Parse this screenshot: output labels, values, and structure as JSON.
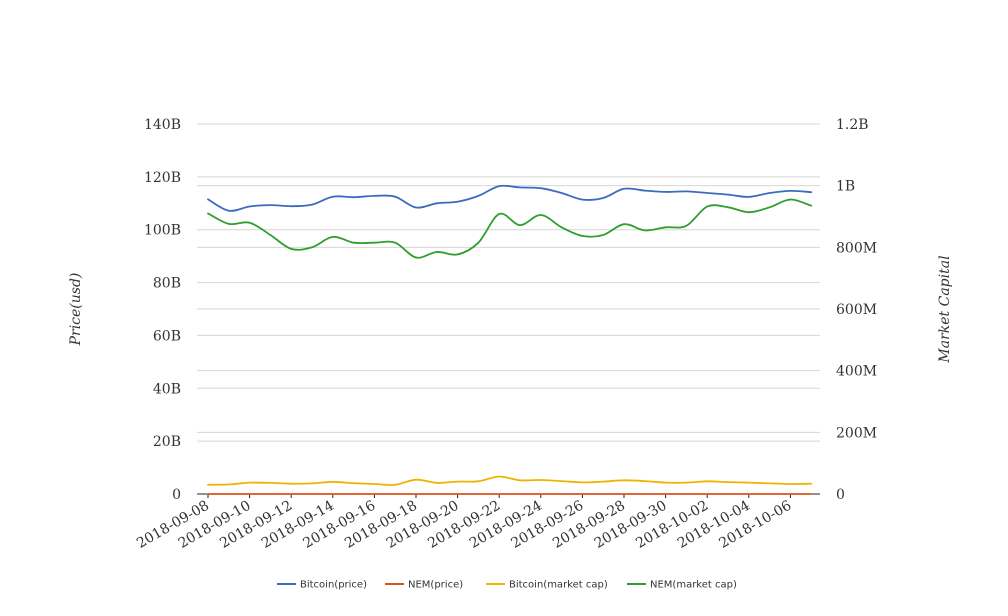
{
  "chart_data": {
    "type": "line",
    "title": "",
    "y_left": {
      "label": "Price(usd)",
      "range": [
        0,
        140000000000
      ],
      "ticks": [
        0,
        20000000000,
        40000000000,
        60000000000,
        80000000000,
        100000000000,
        120000000000,
        140000000000
      ],
      "tick_labels": [
        "0",
        "20B",
        "40B",
        "60B",
        "80B",
        "100B",
        "120B",
        "140B"
      ]
    },
    "y_right": {
      "label": "Market Capital",
      "range": [
        0,
        1200000000
      ],
      "ticks": [
        0,
        200000000,
        400000000,
        600000000,
        800000000,
        1000000000,
        1200000000
      ],
      "tick_labels": [
        "0",
        "200M",
        "400M",
        "600M",
        "800M",
        "1B",
        "1.2B"
      ]
    },
    "x_tick_labels": [
      "2018-09-08",
      "2018-09-10",
      "2018-09-12",
      "2018-09-14",
      "2018-09-16",
      "2018-09-18",
      "2018-09-20",
      "2018-09-22",
      "2018-09-24",
      "2018-09-26",
      "2018-09-28",
      "2018-09-30",
      "2018-10-02",
      "2018-10-04",
      "2018-10-06"
    ],
    "x": [
      "2018-09-08",
      "2018-09-09",
      "2018-09-10",
      "2018-09-11",
      "2018-09-12",
      "2018-09-13",
      "2018-09-14",
      "2018-09-15",
      "2018-09-16",
      "2018-09-17",
      "2018-09-18",
      "2018-09-19",
      "2018-09-20",
      "2018-09-21",
      "2018-09-22",
      "2018-09-23",
      "2018-09-24",
      "2018-09-25",
      "2018-09-26",
      "2018-09-27",
      "2018-09-28",
      "2018-09-29",
      "2018-09-30",
      "2018-10-01",
      "2018-10-02",
      "2018-10-03",
      "2018-10-04",
      "2018-10-05",
      "2018-10-06",
      "2018-10-07"
    ],
    "series": [
      {
        "name": "Bitcoin(price)",
        "axis": "left",
        "color": "#3a6bbf",
        "values": [
          111500000000,
          107200000000,
          108800000000,
          109300000000,
          108900000000,
          109500000000,
          112500000000,
          112300000000,
          112800000000,
          112500000000,
          108400000000,
          110000000000,
          110600000000,
          112800000000,
          116500000000,
          116000000000,
          115700000000,
          113900000000,
          111400000000,
          112000000000,
          115500000000,
          114800000000,
          114300000000,
          114500000000,
          113900000000,
          113300000000,
          112400000000,
          113900000000,
          114700000000,
          114200000000
        ]
      },
      {
        "name": "NEM(price)",
        "axis": "left",
        "color": "#d9531e",
        "values": [
          0.11,
          0.1,
          0.1,
          0.1,
          0.09,
          0.09,
          0.1,
          0.1,
          0.1,
          0.1,
          0.09,
          0.09,
          0.09,
          0.1,
          0.11,
          0.1,
          0.11,
          0.1,
          0.1,
          0.1,
          0.1,
          0.1,
          0.1,
          0.1,
          0.11,
          0.11,
          0.1,
          0.11,
          0.11,
          0.11
        ]
      },
      {
        "name": "Bitcoin(market cap)",
        "axis": "left",
        "color": "#f0b400",
        "values": [
          3500000000,
          3600000000,
          4300000000,
          4200000000,
          3900000000,
          4000000000,
          4600000000,
          4100000000,
          3800000000,
          3500000000,
          5400000000,
          4200000000,
          4700000000,
          4800000000,
          6600000000,
          5200000000,
          5300000000,
          4900000000,
          4400000000,
          4700000000,
          5200000000,
          4900000000,
          4300000000,
          4300000000,
          4800000000,
          4500000000,
          4300000000,
          4000000000,
          3800000000,
          3900000000
        ]
      },
      {
        "name": "NEM(market cap)",
        "axis": "right",
        "color": "#2e9e2e",
        "values": [
          910000000,
          876000000,
          880000000,
          840000000,
          795000000,
          800000000,
          834000000,
          815000000,
          815000000,
          815000000,
          767000000,
          785000000,
          777000000,
          815000000,
          908000000,
          872000000,
          905000000,
          865000000,
          837000000,
          840000000,
          875000000,
          855000000,
          865000000,
          870000000,
          932000000,
          930000000,
          914000000,
          930000000,
          955000000,
          935000000
        ]
      }
    ],
    "legend": {
      "position": "bottom-center",
      "entries": [
        "Bitcoin(price)",
        "NEM(price)",
        "Bitcoin(market cap)",
        "NEM(market cap)"
      ]
    },
    "grid": true
  }
}
